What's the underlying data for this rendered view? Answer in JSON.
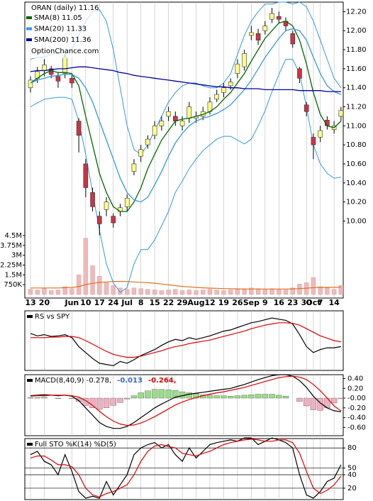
{
  "chart_data": [
    {
      "type": "candlestick",
      "title": "ORAN (daily) 11.16",
      "annotations": [
        "OptionChance.com"
      ],
      "categories": [
        "13",
        null,
        "20",
        null,
        null,
        null,
        "Jun",
        null,
        "10",
        null,
        "17",
        null,
        "24",
        null,
        "Jul",
        null,
        "8",
        null,
        "15",
        null,
        "22",
        null,
        "29",
        null,
        "Aug",
        null,
        "12",
        null,
        "19",
        null,
        "26",
        null,
        "Sep",
        null,
        "9",
        null,
        "16",
        null,
        "23",
        null,
        "30",
        "Oct",
        "7",
        null,
        "14",
        null
      ],
      "open": [
        11.4,
        11.5,
        11.58,
        11.6,
        11.52,
        11.55,
        11.5,
        11.05,
        10.6,
        10.3,
        10.05,
        10.12,
        10.05,
        10.1,
        10.15,
        10.52,
        10.68,
        10.8,
        10.9,
        11.0,
        11.1,
        11.1,
        11.0,
        11.08,
        11.08,
        11.1,
        11.15,
        11.28,
        11.35,
        11.42,
        11.55,
        11.62,
        11.95,
        11.97,
        12.0,
        12.12,
        12.15,
        12.1,
        11.97,
        11.6,
        11.22,
        10.88,
        10.88,
        11.06,
        10.96,
        11.1
      ],
      "high": [
        11.52,
        11.62,
        11.7,
        11.63,
        11.56,
        11.76,
        11.55,
        11.08,
        10.65,
        10.35,
        10.1,
        10.25,
        10.08,
        10.18,
        10.28,
        10.65,
        10.8,
        10.9,
        11.05,
        11.1,
        11.2,
        11.15,
        11.1,
        11.25,
        11.15,
        11.2,
        11.3,
        11.38,
        11.45,
        11.5,
        11.7,
        11.8,
        12.05,
        12.02,
        12.1,
        12.24,
        12.2,
        12.14,
        12.0,
        11.62,
        11.25,
        10.92,
        11.0,
        11.1,
        11.05,
        11.2
      ],
      "low": [
        11.35,
        11.45,
        11.52,
        11.5,
        11.4,
        11.5,
        11.4,
        10.72,
        10.25,
        10.1,
        9.85,
        10.05,
        9.93,
        10.05,
        10.1,
        10.48,
        10.62,
        10.76,
        10.86,
        10.95,
        11.05,
        11.0,
        10.95,
        11.03,
        11.03,
        11.06,
        11.12,
        11.25,
        11.3,
        11.38,
        11.5,
        11.58,
        11.9,
        11.85,
        11.96,
        12.08,
        12.08,
        12.0,
        11.82,
        11.45,
        11.1,
        10.65,
        10.83,
        10.96,
        10.92,
        11.05
      ],
      "close": [
        11.48,
        11.57,
        11.64,
        11.54,
        11.47,
        11.72,
        11.45,
        10.9,
        10.35,
        10.15,
        9.97,
        10.2,
        9.98,
        10.14,
        10.24,
        10.6,
        10.75,
        10.86,
        11.0,
        11.05,
        11.15,
        11.05,
        11.05,
        11.2,
        11.1,
        11.15,
        11.25,
        11.33,
        11.4,
        11.46,
        11.65,
        11.76,
        11.98,
        11.9,
        12.05,
        12.18,
        12.12,
        12.05,
        11.86,
        11.5,
        11.15,
        10.8,
        10.95,
        11.0,
        11.0,
        11.16
      ],
      "up_color": "#ffff88",
      "down_color": "#cc3344",
      "series": [
        {
          "name": "SMA(8) 11.05",
          "color": "#006600",
          "values": [
            11.45,
            11.5,
            11.55,
            11.58,
            11.56,
            11.56,
            11.55,
            11.42,
            11.1,
            10.8,
            10.5,
            10.3,
            10.15,
            10.1,
            10.1,
            10.2,
            10.35,
            10.55,
            10.7,
            10.85,
            10.95,
            11.05,
            11.07,
            11.08,
            11.1,
            11.12,
            11.15,
            11.2,
            11.28,
            11.35,
            11.45,
            11.55,
            11.68,
            11.8,
            11.92,
            12.0,
            12.08,
            12.1,
            12.05,
            11.9,
            11.65,
            11.35,
            11.12,
            11.0,
            10.98,
            11.05
          ]
        },
        {
          "name": "SMA(20) 11.33",
          "color": "#3399dd",
          "values": [
            11.45,
            11.48,
            11.5,
            11.52,
            11.53,
            11.54,
            11.54,
            11.5,
            11.4,
            11.25,
            11.05,
            10.85,
            10.65,
            10.45,
            10.3,
            10.22,
            10.2,
            10.25,
            10.38,
            10.52,
            10.68,
            10.82,
            10.92,
            11.0,
            11.05,
            11.08,
            11.1,
            11.13,
            11.17,
            11.22,
            11.3,
            11.38,
            11.48,
            11.6,
            11.72,
            11.82,
            11.92,
            12.0,
            12.02,
            12.0,
            11.9,
            11.72,
            11.55,
            11.42,
            11.36,
            11.33
          ]
        },
        {
          "name": "SMA(200) 11.36",
          "color": "#000099",
          "values": [
            11.57,
            11.58,
            11.58,
            11.59,
            11.6,
            11.6,
            11.61,
            11.62,
            11.62,
            11.61,
            11.6,
            11.59,
            11.58,
            11.56,
            11.55,
            11.53,
            11.52,
            11.51,
            11.5,
            11.49,
            11.48,
            11.47,
            11.46,
            11.45,
            11.44,
            11.43,
            11.42,
            11.41,
            11.41,
            11.4,
            11.4,
            11.39,
            11.39,
            11.39,
            11.38,
            11.38,
            11.38,
            11.38,
            11.38,
            11.37,
            11.37,
            11.37,
            11.37,
            11.36,
            11.36,
            11.36
          ]
        }
      ],
      "bands": {
        "color": "#3399dd",
        "upper": [
          11.7,
          11.72,
          11.72,
          11.75,
          11.76,
          11.78,
          11.8,
          11.95,
          12.1,
          12.2,
          12.22,
          12.1,
          11.8,
          11.4,
          11.0,
          10.75,
          10.7,
          10.8,
          10.95,
          11.1,
          11.25,
          11.35,
          11.42,
          11.45,
          11.45,
          11.42,
          11.4,
          11.4,
          11.45,
          11.55,
          11.75,
          11.95,
          12.1,
          12.2,
          12.28,
          12.28,
          12.3,
          12.3,
          12.28,
          12.3,
          12.25,
          12.1,
          11.9,
          11.7,
          11.5,
          11.4
        ],
        "lower": [
          11.2,
          11.24,
          11.28,
          11.29,
          11.3,
          11.3,
          11.28,
          11.05,
          10.7,
          10.3,
          9.9,
          9.55,
          9.35,
          9.25,
          9.3,
          9.55,
          9.7,
          9.7,
          9.8,
          9.95,
          10.1,
          10.3,
          10.42,
          10.55,
          10.65,
          10.74,
          10.8,
          10.86,
          10.89,
          10.89,
          10.85,
          10.81,
          10.86,
          11.0,
          11.16,
          11.36,
          11.54,
          11.7,
          11.7,
          11.55,
          11.2,
          10.8,
          10.6,
          10.5,
          10.45,
          10.46
        ]
      },
      "volume": {
        "color": "#f2b8b8",
        "ma_color": "#e07020",
        "values": [
          400000,
          350000,
          450000,
          300000,
          350000,
          600000,
          450000,
          1500000,
          4300000,
          2200000,
          1400000,
          900000,
          700000,
          500000,
          400000,
          500000,
          450000,
          400000,
          350000,
          300000,
          350000,
          400000,
          300000,
          350000,
          300000,
          350000,
          400000,
          350000,
          300000,
          350000,
          400000,
          450000,
          500000,
          450000,
          400000,
          450000,
          400000,
          350000,
          500000,
          800000,
          900000,
          1300000,
          600000,
          500000,
          400000,
          700000
        ],
        "ma_values": [
          500000,
          500000,
          500000,
          500000,
          500000,
          520000,
          540000,
          600000,
          760000,
          850000,
          920000,
          960000,
          1000000,
          1000000,
          990000,
          960000,
          930000,
          900000,
          860000,
          800000,
          740000,
          680000,
          620000,
          580000,
          540000,
          510000,
          490000,
          470000,
          450000,
          440000,
          430000,
          420000,
          420000,
          420000,
          420000,
          420000,
          420000,
          420000,
          430000,
          450000,
          480000,
          520000,
          540000,
          550000,
          550000,
          560000
        ]
      },
      "ylim": [
        9.19,
        12.3
      ],
      "yticks": [
        {
          "value": 12.2,
          "label": "12.20"
        },
        {
          "value": 12.0,
          "label": "12.00"
        },
        {
          "value": 11.8,
          "label": "11.80"
        },
        {
          "value": 11.6,
          "label": "11.60"
        },
        {
          "value": 11.4,
          "label": "11.40"
        },
        {
          "value": 11.2,
          "label": "11.20"
        },
        {
          "value": 11.0,
          "label": "11.00"
        },
        {
          "value": 10.8,
          "label": "10.80"
        },
        {
          "value": 10.6,
          "label": "10.60"
        },
        {
          "value": 10.4,
          "label": "10.40"
        },
        {
          "value": 10.2,
          "label": "10.20"
        },
        {
          "value": 10.0,
          "label": "10.00"
        }
      ],
      "y2lim": [
        0,
        4500000
      ],
      "y2ticks": [
        {
          "value": 4500000,
          "label": "4.5M"
        },
        {
          "value": 3750000,
          "label": "3.75M"
        },
        {
          "value": 3000000,
          "label": "3M"
        },
        {
          "value": 2250000,
          "label": "2.25M"
        },
        {
          "value": 1500000,
          "label": "1.5M"
        },
        {
          "value": 750000,
          "label": "750K"
        }
      ],
      "grid": false
    },
    {
      "type": "line",
      "title": "RS vs SPY",
      "title_color": "#000000",
      "series": [
        {
          "color": "#000000",
          "values": [
            62,
            58,
            60,
            57,
            58,
            60,
            55,
            40,
            30,
            20,
            12,
            10,
            8,
            15,
            12,
            18,
            25,
            30,
            35,
            42,
            48,
            52,
            50,
            55,
            52,
            55,
            58,
            62,
            66,
            68,
            72,
            76,
            80,
            82,
            85,
            88,
            86,
            84,
            78,
            60,
            40,
            30,
            35,
            38,
            38,
            40
          ]
        },
        {
          "color": "#dd0000",
          "values": [
            55,
            55,
            55,
            56,
            56,
            57,
            57,
            55,
            50,
            44,
            38,
            32,
            27,
            24,
            22,
            22,
            24,
            27,
            30,
            33,
            37,
            40,
            42,
            45,
            47,
            49,
            51,
            54,
            57,
            60,
            63,
            66,
            70,
            73,
            76,
            78,
            80,
            80,
            79,
            76,
            70,
            64,
            58,
            54,
            50,
            48
          ]
        }
      ],
      "ylim": [
        0,
        100
      ],
      "grid": false
    },
    {
      "type": "line",
      "title": "MACD(8,40,9) -0.278,",
      "title_color": "#000000",
      "series": [
        {
          "name": "-0.013",
          "color": "#3366cc",
          "type": "bar",
          "pos_color": "#99dd88",
          "neg_color": "#f0b0c0",
          "values": [
            0.01,
            0.01,
            0.02,
            0.0,
            -0.01,
            0.0,
            -0.01,
            -0.07,
            -0.15,
            -0.2,
            -0.23,
            -0.2,
            -0.15,
            -0.09,
            -0.02,
            0.05,
            0.11,
            0.15,
            0.18,
            0.18,
            0.17,
            0.16,
            0.13,
            0.11,
            0.09,
            0.07,
            0.06,
            0.05,
            0.05,
            0.04,
            0.05,
            0.06,
            0.07,
            0.08,
            0.08,
            0.08,
            0.06,
            0.04,
            0.0,
            -0.07,
            -0.16,
            -0.24,
            -0.25,
            -0.2,
            -0.1,
            -0.013
          ]
        },
        {
          "color": "#000000",
          "values": [
            0.05,
            0.06,
            0.07,
            0.06,
            0.05,
            0.06,
            0.04,
            -0.05,
            -0.2,
            -0.35,
            -0.5,
            -0.58,
            -0.62,
            -0.62,
            -0.58,
            -0.5,
            -0.4,
            -0.3,
            -0.2,
            -0.12,
            -0.05,
            0.02,
            0.05,
            0.08,
            0.1,
            0.12,
            0.14,
            0.16,
            0.18,
            0.2,
            0.24,
            0.28,
            0.33,
            0.38,
            0.42,
            0.46,
            0.48,
            0.48,
            0.45,
            0.36,
            0.22,
            0.04,
            -0.1,
            -0.2,
            -0.26,
            -0.278
          ]
        },
        {
          "name": "-0.264,",
          "color": "#dd0000",
          "values": [
            0.04,
            0.05,
            0.05,
            0.06,
            0.06,
            0.06,
            0.05,
            0.02,
            -0.05,
            -0.15,
            -0.27,
            -0.38,
            -0.47,
            -0.53,
            -0.56,
            -0.55,
            -0.51,
            -0.45,
            -0.38,
            -0.3,
            -0.22,
            -0.14,
            -0.08,
            -0.03,
            0.01,
            0.05,
            0.08,
            0.11,
            0.13,
            0.16,
            0.19,
            0.22,
            0.26,
            0.3,
            0.34,
            0.38,
            0.42,
            0.44,
            0.45,
            0.43,
            0.38,
            0.28,
            0.15,
            0.0,
            -0.16,
            -0.264
          ]
        }
      ],
      "ylim": [
        -0.77,
        0.48
      ],
      "yticks": [
        {
          "value": 0.4,
          "label": "0.40"
        },
        {
          "value": 0.2,
          "label": "0.20"
        },
        {
          "value": 0,
          "label": "-0.00"
        },
        {
          "value": -0.2,
          "label": "-0.20"
        },
        {
          "value": -0.4,
          "label": "-0.40"
        },
        {
          "value": -0.6,
          "label": "-0.60"
        }
      ],
      "grid": false
    },
    {
      "type": "line",
      "title": "Full STO %K(14) %D(5)",
      "title_color": "#000000",
      "series": [
        {
          "color": "#000000",
          "values": [
            70,
            75,
            60,
            55,
            40,
            70,
            45,
            15,
            5,
            8,
            5,
            30,
            10,
            25,
            40,
            70,
            80,
            85,
            88,
            80,
            85,
            70,
            60,
            80,
            65,
            75,
            85,
            88,
            90,
            92,
            90,
            95,
            95,
            85,
            90,
            95,
            92,
            88,
            80,
            40,
            10,
            5,
            15,
            30,
            35,
            55
          ]
        },
        {
          "color": "#dd0000",
          "values": [
            65,
            68,
            68,
            62,
            55,
            55,
            52,
            40,
            20,
            10,
            7,
            12,
            15,
            20,
            25,
            40,
            60,
            75,
            83,
            85,
            82,
            80,
            72,
            70,
            68,
            72,
            75,
            80,
            85,
            88,
            90,
            92,
            93,
            92,
            90,
            90,
            92,
            92,
            88,
            72,
            45,
            20,
            12,
            17,
            25,
            38
          ]
        }
      ],
      "ylim": [
        3,
        94
      ],
      "yticks": [
        80,
        50,
        40,
        20
      ],
      "grid": true
    }
  ]
}
